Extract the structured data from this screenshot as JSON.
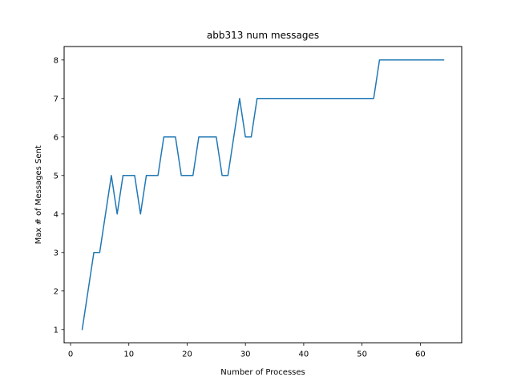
{
  "chart_data": {
    "type": "line",
    "title": "abb313 num messages",
    "xlabel": "Number of Processes",
    "ylabel": "Max # of Messages Sent",
    "xlim": [
      -1.1,
      67.1
    ],
    "ylim": [
      0.65,
      8.35
    ],
    "xticks": [
      0,
      10,
      20,
      30,
      40,
      50,
      60
    ],
    "yticks": [
      1,
      2,
      3,
      4,
      5,
      6,
      7,
      8
    ],
    "grid": false,
    "series": [
      {
        "color": "#1f77b4",
        "x": [
          2,
          3,
          4,
          5,
          6,
          7,
          8,
          9,
          10,
          11,
          12,
          13,
          14,
          15,
          16,
          17,
          18,
          19,
          20,
          21,
          22,
          23,
          24,
          25,
          26,
          27,
          28,
          29,
          30,
          31,
          32,
          33,
          34,
          35,
          36,
          37,
          38,
          39,
          40,
          41,
          42,
          43,
          44,
          45,
          46,
          47,
          48,
          49,
          50,
          51,
          52,
          53,
          54,
          55,
          56,
          57,
          58,
          59,
          60,
          61,
          62,
          63,
          64
        ],
        "y": [
          1,
          2,
          3,
          3,
          4,
          5,
          4,
          5,
          5,
          5,
          4,
          5,
          5,
          5,
          6,
          6,
          6,
          5,
          5,
          5,
          6,
          6,
          6,
          6,
          5,
          5,
          6,
          7,
          6,
          6,
          7,
          7,
          7,
          7,
          7,
          7,
          7,
          7,
          7,
          7,
          7,
          7,
          7,
          7,
          7,
          7,
          7,
          7,
          7,
          7,
          7,
          8,
          8,
          8,
          8,
          8,
          8,
          8,
          8,
          8,
          8,
          8,
          8
        ]
      }
    ]
  }
}
